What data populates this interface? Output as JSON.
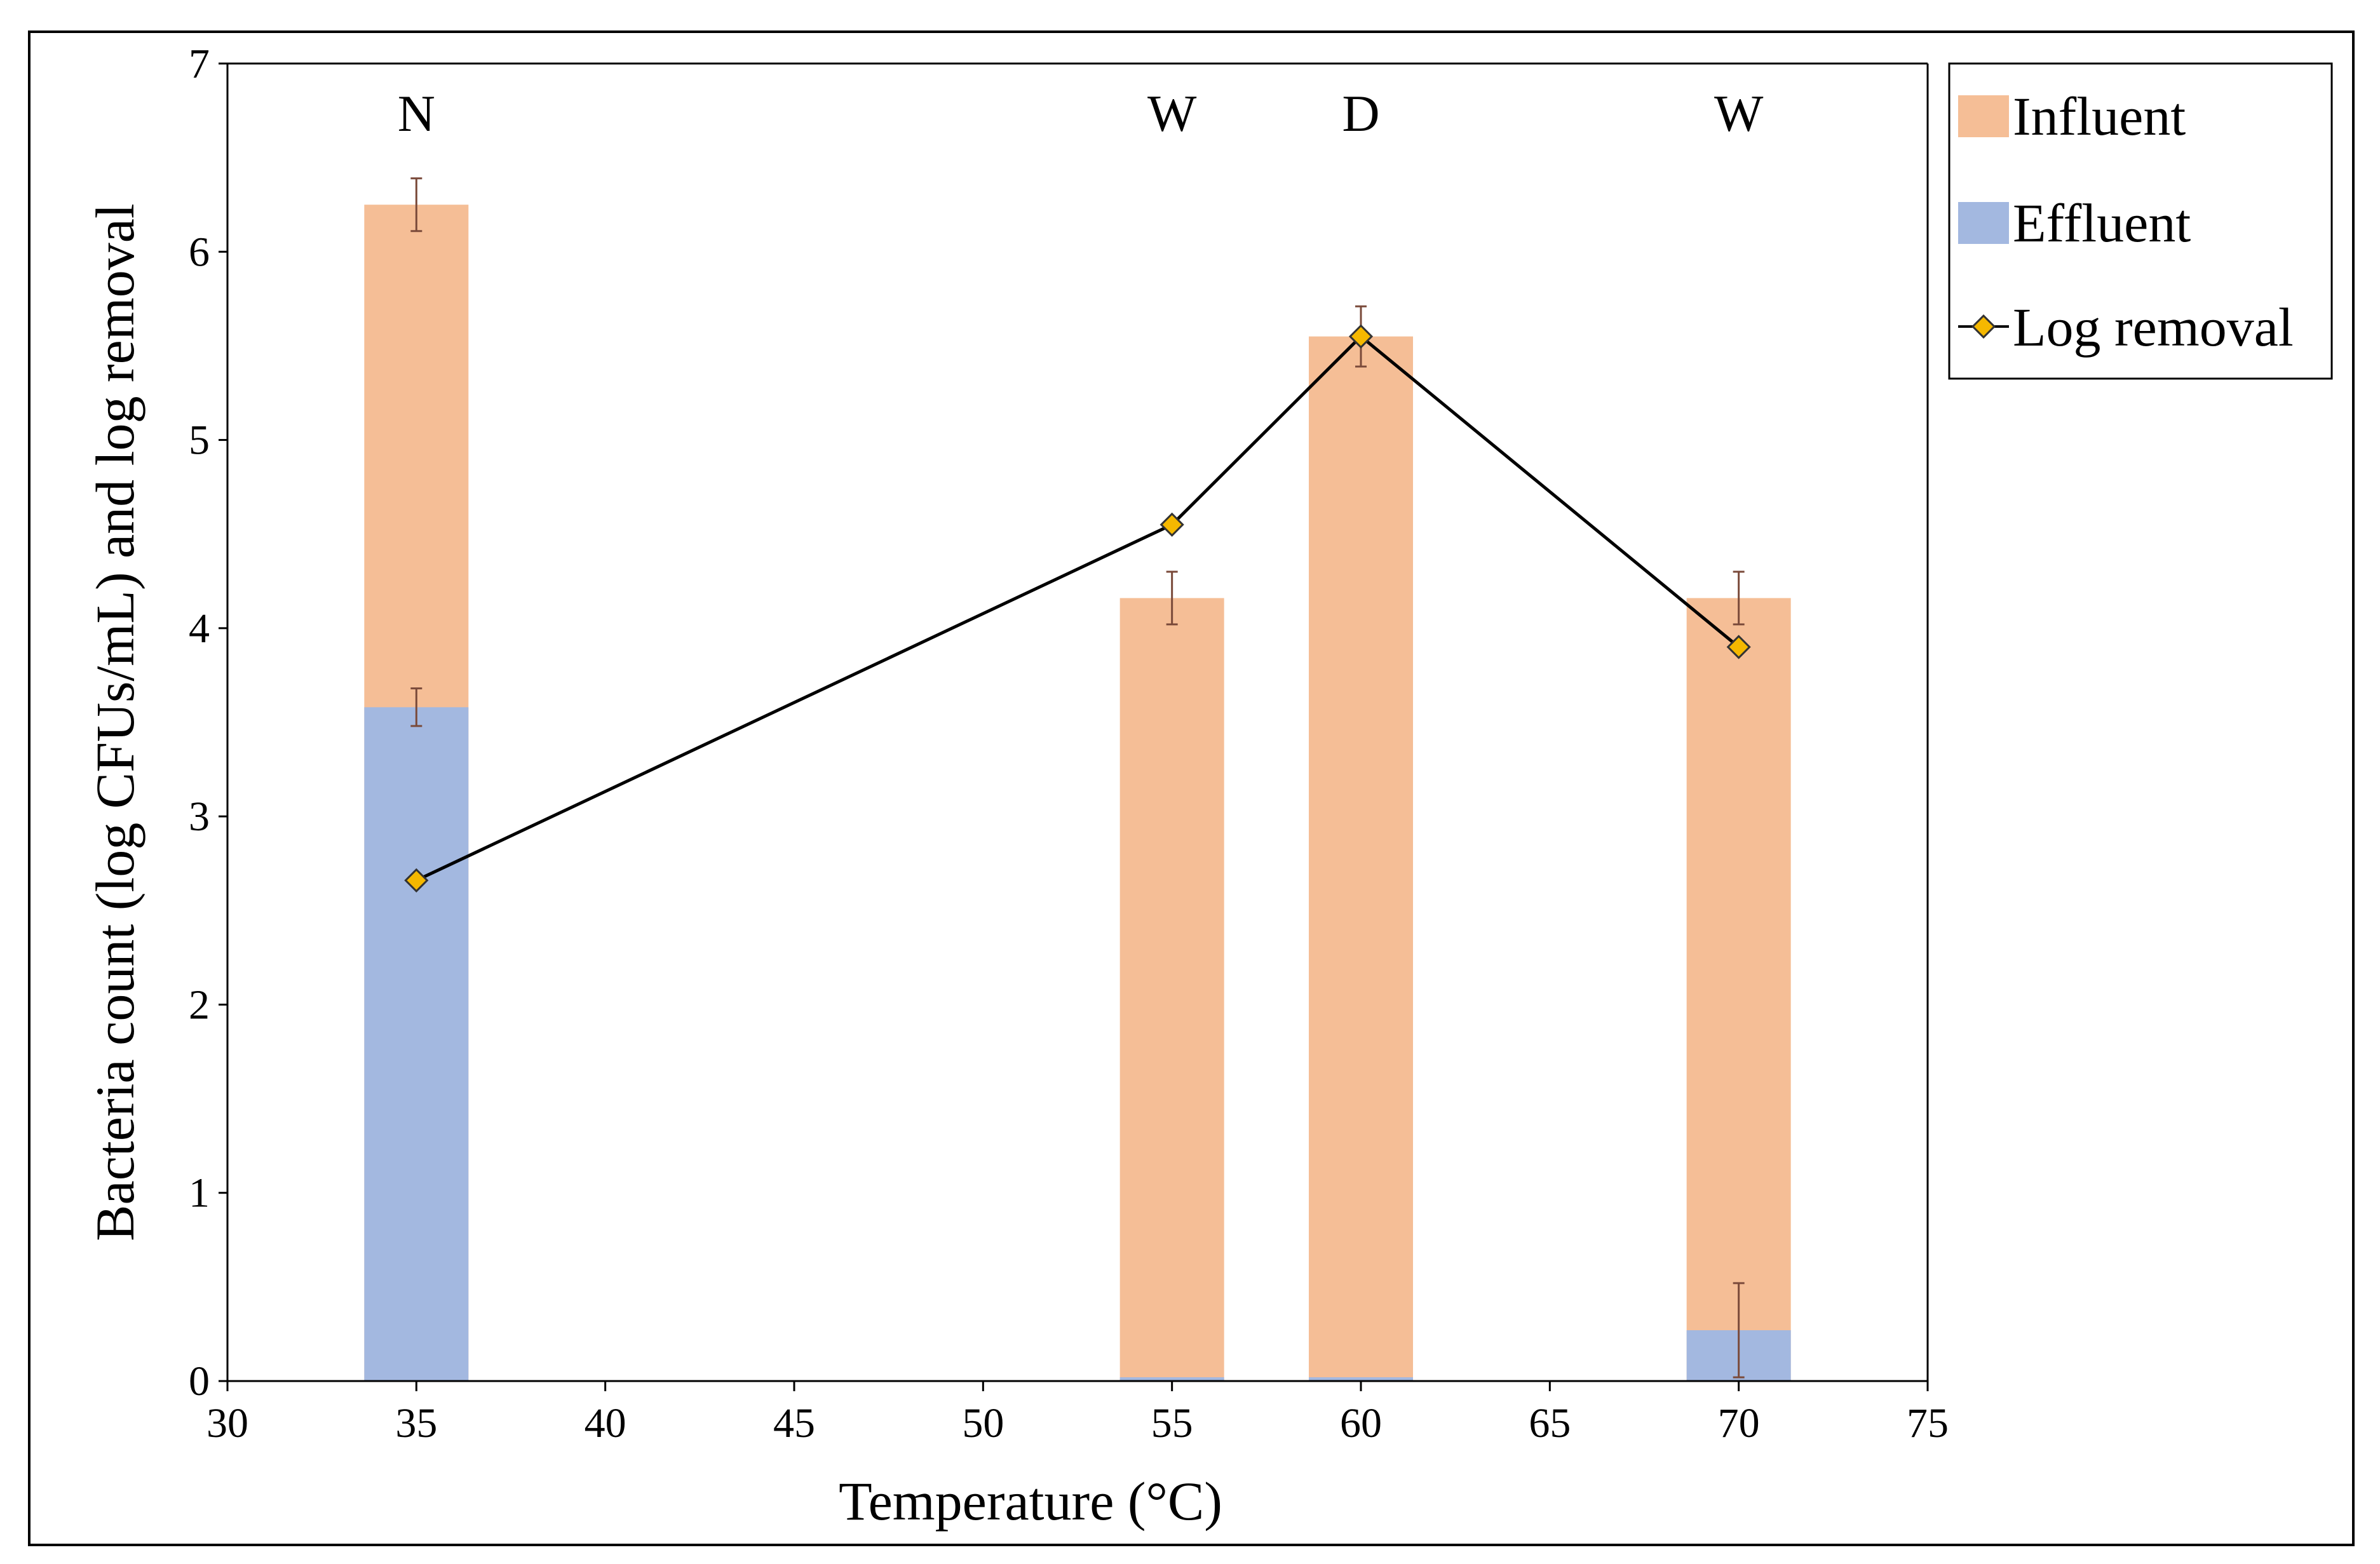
{
  "chart_data": {
    "type": "bar",
    "title": "",
    "xlabel": "Temperature (°C)",
    "ylabel": "Bacteria count (log CFUs/mL) and log removal",
    "xlim": [
      30,
      75
    ],
    "ylim": [
      0,
      7
    ],
    "xticks": [
      30,
      35,
      40,
      45,
      50,
      55,
      60,
      65,
      70,
      75
    ],
    "yticks": [
      0,
      1,
      2,
      3,
      4,
      5,
      6,
      7
    ],
    "grid": false,
    "legend_position": "top-right",
    "x": [
      35,
      55,
      60,
      70
    ],
    "series": [
      {
        "name": "Influent",
        "kind": "bar",
        "color": "#F5BE96",
        "values": [
          6.25,
          4.16,
          5.55,
          4.16
        ],
        "errors": [
          0.14,
          0.14,
          0.16,
          0.14
        ]
      },
      {
        "name": "Effluent",
        "kind": "bar",
        "color": "#A3B8E0",
        "values": [
          3.58,
          0.02,
          0.02,
          0.27
        ],
        "errors": [
          0.1,
          0,
          0,
          0.25
        ]
      },
      {
        "name": "Log removal",
        "kind": "line",
        "color": "#000000",
        "marker_color": "#F5B800",
        "values": [
          2.66,
          4.55,
          5.55,
          3.9
        ]
      }
    ],
    "annotations": [
      {
        "x": 35,
        "label": "N"
      },
      {
        "x": 55,
        "label": "W"
      },
      {
        "x": 60,
        "label": "D"
      },
      {
        "x": 70,
        "label": "W"
      }
    ]
  }
}
